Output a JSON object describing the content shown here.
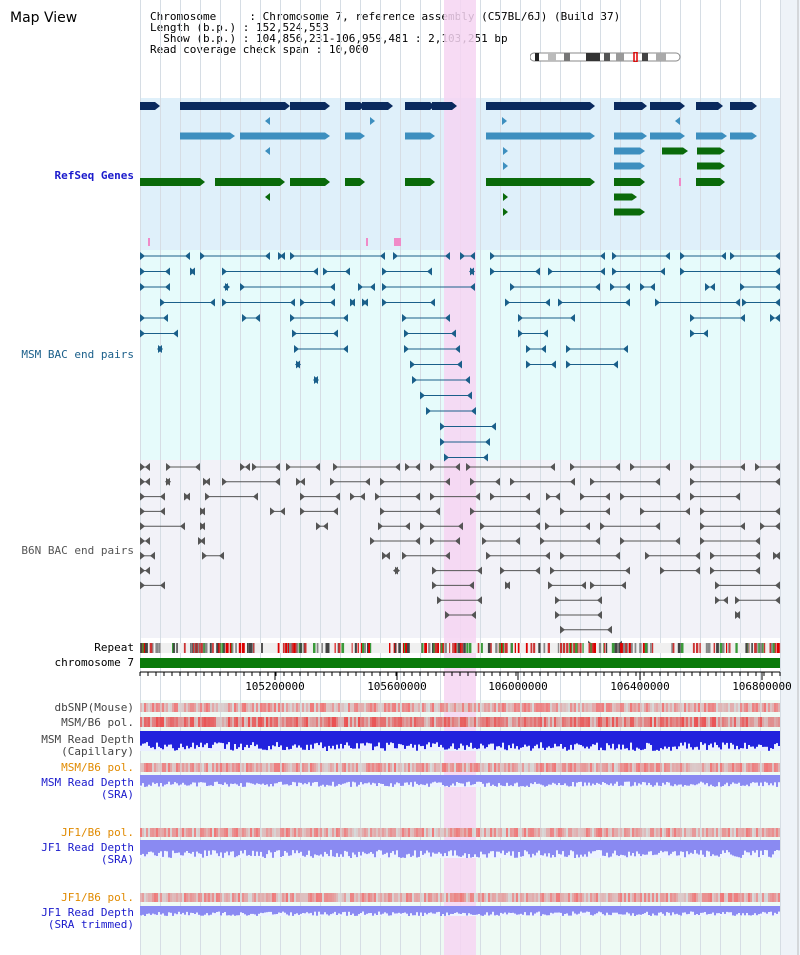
{
  "header": {
    "title": "Map View",
    "chromosome_label": "Chromosome",
    "chromosome_value": "Chromosome 7, reference assembly (C57BL/6J) (Build 37)",
    "length_label": "Length (b.p.)",
    "length_value": "152,524,553",
    "show_label": "Show (b.p.)",
    "show_value": "104,856,231-106,959,481 : 2,103,251 bp",
    "coverage_label": "Read coverage check span",
    "coverage_value": "10,000"
  },
  "tracks": {
    "refseq": {
      "label": "RefSeq Genes",
      "color": "#1a1acc"
    },
    "msm_bac": {
      "label": "MSM BAC end pairs",
      "color": "#1a5f8a"
    },
    "b6n_bac": {
      "label": "B6N BAC end pairs",
      "color": "#555555"
    },
    "repeat": {
      "label": "Repeat"
    },
    "chromosome": {
      "label": "chromosome 7"
    },
    "dbsnp": {
      "label": "dbSNP(Mouse)"
    },
    "msm_b6_pol": {
      "label": "MSM/B6 pol."
    },
    "msm_depth_cap": {
      "label1": "MSM Read Depth",
      "label2": "(Capillary)"
    },
    "msm_b6_pol2": {
      "label": "MSM/B6 pol.",
      "color": "#e08a00"
    },
    "msm_depth_sra": {
      "label1": "MSM Read Depth",
      "label2": "(SRA)"
    },
    "jf1_pol": {
      "label": "JF1/B6 pol.",
      "color": "#e08a00"
    },
    "jf1_depth_sra": {
      "label1": "JF1 Read Depth",
      "label2": "(SRA)"
    },
    "jf1_pol2": {
      "label": "JF1/B6 pol.",
      "color": "#e08a00"
    },
    "jf1_depth_trim": {
      "label1": "JF1 Read Depth",
      "label2": "(SRA trimmed)"
    }
  },
  "axis": {
    "ticks": [
      "105200000",
      "105600000",
      "106000000",
      "106400000",
      "106800000"
    ]
  },
  "colors": {
    "refseq_bg": "#dff0fa",
    "msm_bg": "#e6fbfb",
    "b6n_bg": "#f2f2f8",
    "highlight": "#f6d5f2",
    "refseq_dark": "#0a2a5e",
    "refseq_mid": "#3d8fbf",
    "refseq_green": "#0a6a0a",
    "chrom_green": "#0a7a0a"
  }
}
